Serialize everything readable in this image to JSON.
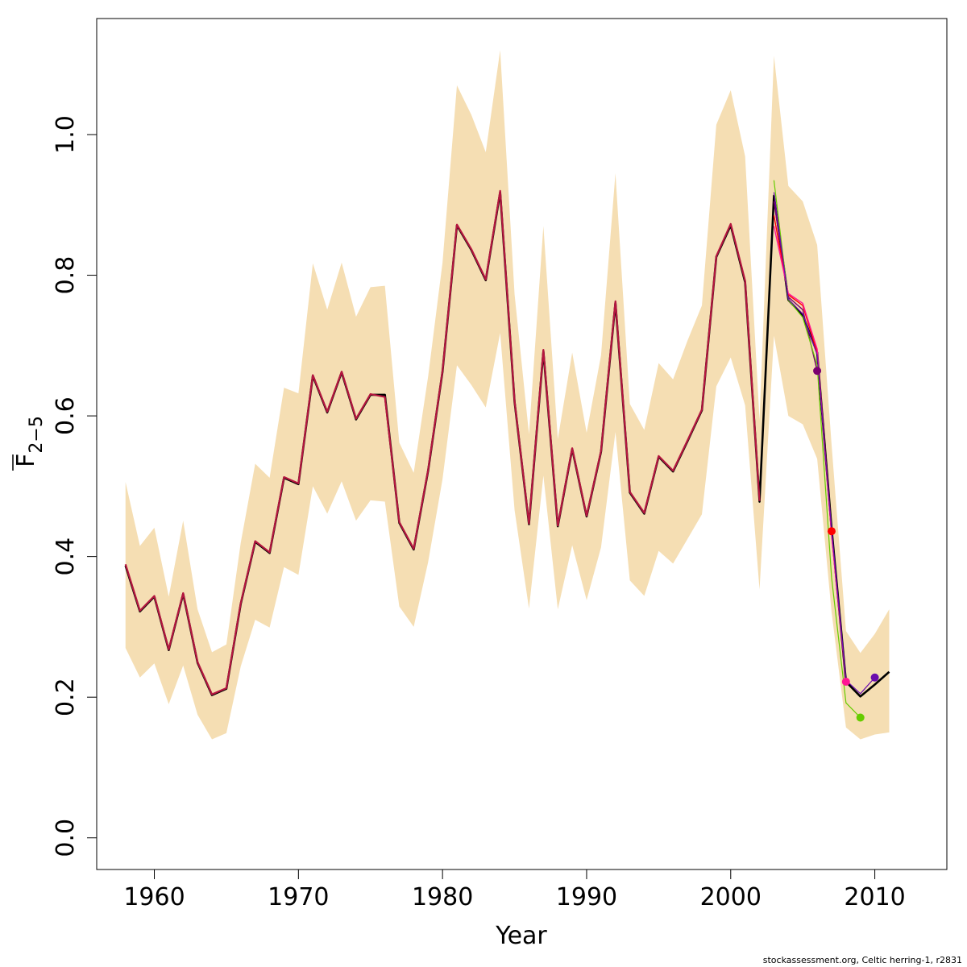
{
  "chart_data": {
    "type": "line",
    "xlabel": "Year",
    "ylabel": {
      "base": "F",
      "subscript": "2−5",
      "overline": true
    },
    "xlim": [
      1956,
      2015
    ],
    "ylim": [
      -0.045,
      1.165
    ],
    "x_ticks": [
      1960,
      1970,
      1980,
      1990,
      2000,
      2010
    ],
    "y_ticks": [
      0.0,
      0.2,
      0.4,
      0.6,
      0.8,
      1.0
    ],
    "y_tick_labels": [
      "0.0",
      "0.2",
      "0.4",
      "0.6",
      "0.8",
      "1.0"
    ],
    "grid": false,
    "band": {
      "color": "#f5deb3",
      "years": [
        1958,
        1959,
        1960,
        1961,
        1962,
        1963,
        1964,
        1965,
        1966,
        1967,
        1968,
        1969,
        1970,
        1971,
        1972,
        1973,
        1974,
        1975,
        1976,
        1977,
        1978,
        1979,
        1980,
        1981,
        1982,
        1983,
        1984,
        1985,
        1986,
        1987,
        1988,
        1989,
        1990,
        1991,
        1992,
        1993,
        1994,
        1995,
        1996,
        1997,
        1998,
        1999,
        2000,
        2001,
        2002,
        2003,
        2004,
        2005,
        2006,
        2007,
        2008,
        2009,
        2010,
        2011
      ],
      "lower": [
        0.27,
        0.228,
        0.248,
        0.19,
        0.245,
        0.175,
        0.14,
        0.149,
        0.244,
        0.31,
        0.299,
        0.385,
        0.374,
        0.5,
        0.461,
        0.507,
        0.451,
        0.48,
        0.478,
        0.329,
        0.3,
        0.392,
        0.51,
        0.672,
        0.644,
        0.612,
        0.718,
        0.466,
        0.326,
        0.515,
        0.325,
        0.416,
        0.338,
        0.413,
        0.577,
        0.366,
        0.344,
        0.408,
        0.39,
        0.425,
        0.46,
        0.642,
        0.683,
        0.615,
        0.353,
        0.714,
        0.6,
        0.588,
        0.539,
        0.321,
        0.157,
        0.14,
        0.147,
        0.15
      ],
      "upper": [
        0.506,
        0.415,
        0.441,
        0.343,
        0.451,
        0.325,
        0.264,
        0.275,
        0.42,
        0.532,
        0.512,
        0.64,
        0.632,
        0.817,
        0.751,
        0.818,
        0.741,
        0.783,
        0.785,
        0.562,
        0.519,
        0.656,
        0.818,
        1.07,
        1.028,
        0.975,
        1.12,
        0.773,
        0.574,
        0.87,
        0.567,
        0.69,
        0.576,
        0.686,
        0.945,
        0.617,
        0.58,
        0.675,
        0.652,
        0.707,
        0.757,
        1.014,
        1.063,
        0.969,
        0.594,
        1.112,
        0.927,
        0.905,
        0.843,
        0.559,
        0.294,
        0.263,
        0.29,
        0.325
      ]
    },
    "series": [
      {
        "color": "#000000",
        "x": [
          1958,
          1959,
          1960,
          1961,
          1962,
          1963,
          1964,
          1965,
          1966,
          1967,
          1968,
          1969,
          1970,
          1971,
          1972,
          1973,
          1974,
          1975,
          1976,
          1977,
          1978,
          1979,
          1980,
          1981,
          1982,
          1983,
          1984,
          1985,
          1986,
          1987,
          1988,
          1989,
          1990,
          1991,
          1992,
          1993,
          1994,
          1995,
          1996,
          1997,
          1998,
          1999,
          2000,
          2001,
          2002,
          2003,
          2004,
          2005,
          2006,
          2007,
          2008,
          2009,
          2010,
          2011
        ],
        "y": [
          0.387,
          0.322,
          0.343,
          0.267,
          0.347,
          0.249,
          0.203,
          0.212,
          0.333,
          0.421,
          0.405,
          0.512,
          0.503,
          0.657,
          0.605,
          0.662,
          0.595,
          0.63,
          0.63,
          0.448,
          0.41,
          0.522,
          0.663,
          0.871,
          0.836,
          0.793,
          0.918,
          0.62,
          0.446,
          0.692,
          0.443,
          0.553,
          0.457,
          0.549,
          0.761,
          0.491,
          0.461,
          0.542,
          0.521,
          0.564,
          0.608,
          0.826,
          0.871,
          0.79,
          0.478,
          0.913,
          0.765,
          0.743,
          0.69,
          0.44,
          0.222,
          0.201,
          0.218,
          0.236
        ],
        "width": 2.6
      },
      {
        "color": "#7a0070",
        "x": [
          2003,
          2004,
          2005,
          2006
        ],
        "y": [
          0.905,
          0.769,
          0.751,
          0.664
        ],
        "width": 1.4,
        "end_marker": true
      },
      {
        "color": "#ff0000",
        "x": [
          2003,
          2004,
          2005,
          2006,
          2007
        ],
        "y": [
          0.885,
          0.772,
          0.757,
          0.69,
          0.436
        ],
        "width": 1.4,
        "end_marker": true
      },
      {
        "color": "#ff1493",
        "x": [
          2003,
          2004,
          2005,
          2006,
          2007,
          2008
        ],
        "y": [
          0.87,
          0.774,
          0.76,
          0.695,
          0.43,
          0.222
        ],
        "width": 1.4,
        "end_marker": true
      },
      {
        "color": "#66cc00",
        "x": [
          2003,
          2004,
          2005,
          2006,
          2007,
          2008,
          2009
        ],
        "y": [
          0.935,
          0.765,
          0.74,
          0.672,
          0.37,
          0.192,
          0.171
        ],
        "width": 1.2,
        "end_marker": true
      },
      {
        "color": "#6a0dad",
        "x": [
          2003,
          2004,
          2005,
          2006,
          2007,
          2008,
          2009,
          2010
        ],
        "y": [
          0.918,
          0.766,
          0.745,
          0.687,
          0.438,
          0.224,
          0.205,
          0.228
        ],
        "width": 1.2,
        "end_marker": true
      },
      {
        "color": "#b5163f",
        "x": [
          1958,
          1959,
          1960,
          1961,
          1962,
          1963,
          1964,
          1965,
          1966,
          1967,
          1968,
          1969,
          1970,
          1971,
          1972,
          1973,
          1974,
          1975,
          1976,
          1977,
          1978,
          1979,
          1980,
          1981,
          1982,
          1983,
          1984,
          1985,
          1986,
          1987,
          1988,
          1989,
          1990,
          1991,
          1992,
          1993,
          1994,
          1995,
          1996,
          1997,
          1998,
          1999,
          2000,
          2001,
          2002
        ],
        "y": [
          0.389,
          0.323,
          0.344,
          0.268,
          0.348,
          0.25,
          0.204,
          0.213,
          0.334,
          0.422,
          0.406,
          0.513,
          0.504,
          0.658,
          0.606,
          0.663,
          0.596,
          0.631,
          0.627,
          0.449,
          0.411,
          0.523,
          0.664,
          0.872,
          0.837,
          0.794,
          0.92,
          0.621,
          0.447,
          0.694,
          0.444,
          0.554,
          0.458,
          0.55,
          0.763,
          0.492,
          0.462,
          0.543,
          0.522,
          0.565,
          0.609,
          0.827,
          0.873,
          0.792,
          0.479
        ],
        "width": 2.2
      }
    ]
  },
  "footer": "stockassessment.org, Celtic  herring-1, r2831"
}
